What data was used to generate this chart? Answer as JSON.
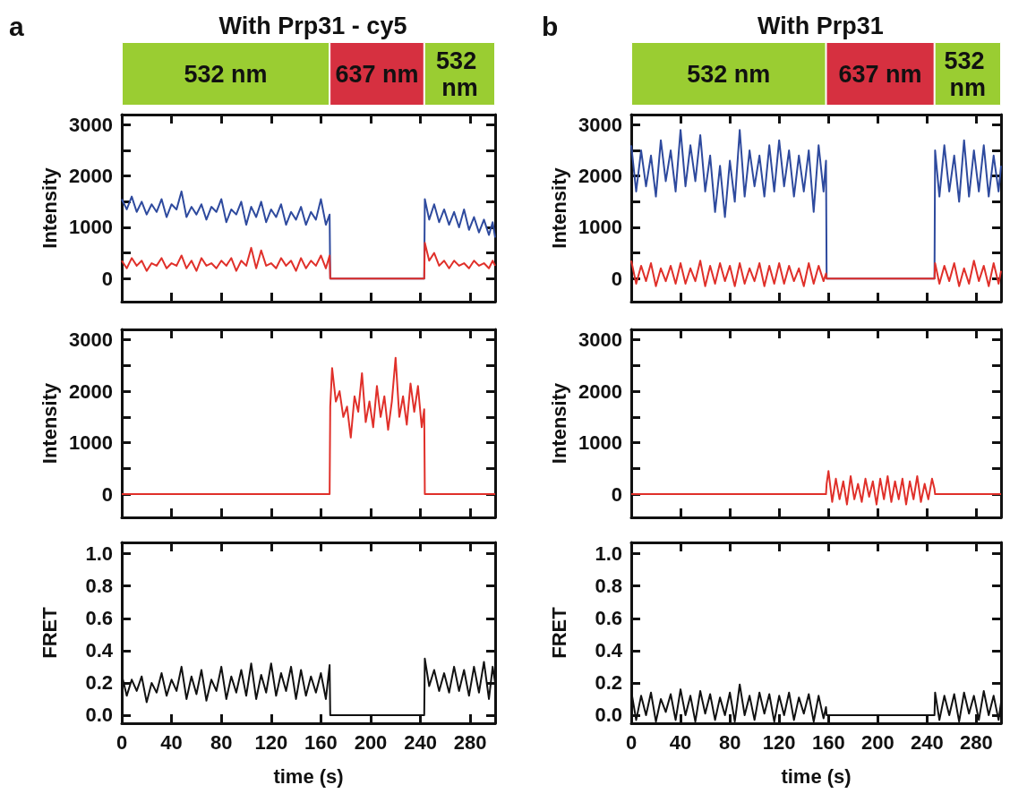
{
  "chart_data": [
    {
      "type": "bar",
      "orientation": "horizontal",
      "stacked": true,
      "title": "With Prp31 - cy5",
      "annotations": [
        "a"
      ],
      "tick_labels": false,
      "xlim": [
        0,
        300
      ],
      "categories": [
        null
      ],
      "series": [
        {
          "name": "532 nm",
          "color": "#9acd32",
          "values": [
            167
          ]
        },
        {
          "name": "637 nm",
          "color": "#d63040",
          "values": [
            76
          ]
        },
        {
          "name": "532 nm",
          "color": "#9acd32",
          "values": [
            57
          ]
        }
      ]
    },
    {
      "type": "line",
      "ylabel": "Intensity",
      "tick_labels": "y",
      "grid": false,
      "xlim": [
        0,
        300
      ],
      "xticks": [
        0,
        40,
        80,
        120,
        160,
        200,
        240,
        280
      ],
      "ylim": [
        -450,
        3200
      ],
      "yticks": [
        0,
        {
          "value": 500,
          "label": null
        },
        1000,
        {
          "value": 1500,
          "label": null
        },
        2000,
        {
          "value": 2500,
          "label": null
        },
        3000
      ],
      "series": [
        {
          "color": "#2e4a9e",
          "x": [
            0,
            4,
            8,
            12,
            16,
            20,
            24,
            28,
            32,
            36,
            40,
            44,
            48,
            52,
            56,
            60,
            64,
            68,
            72,
            76,
            80,
            84,
            88,
            92,
            96,
            100,
            104,
            108,
            112,
            116,
            120,
            124,
            128,
            132,
            136,
            140,
            144,
            148,
            152,
            156,
            160,
            164,
            167,
            167.5,
            243,
            243.5,
            247,
            251,
            255,
            259,
            263,
            267,
            271,
            275,
            279,
            283,
            287,
            291,
            295,
            298,
            300
          ],
          "values": [
            1550,
            1350,
            1600,
            1300,
            1500,
            1250,
            1450,
            1300,
            1550,
            1200,
            1450,
            1350,
            1700,
            1200,
            1400,
            1250,
            1450,
            1150,
            1400,
            1300,
            1550,
            1100,
            1350,
            1250,
            1500,
            1050,
            1400,
            1200,
            1500,
            1100,
            1350,
            1200,
            1450,
            1050,
            1300,
            1150,
            1400,
            1050,
            1300,
            1150,
            1550,
            1050,
            1250,
            0,
            0,
            1550,
            1150,
            1450,
            1100,
            1350,
            1050,
            1300,
            1000,
            1350,
            950,
            1200,
            900,
            1150,
            850,
            1100,
            800
          ]
        },
        {
          "color": "#e0302a",
          "x": [
            0,
            4,
            8,
            12,
            16,
            20,
            24,
            28,
            32,
            36,
            40,
            44,
            48,
            52,
            56,
            60,
            64,
            68,
            72,
            76,
            80,
            84,
            88,
            92,
            96,
            100,
            104,
            108,
            112,
            116,
            120,
            124,
            128,
            132,
            136,
            140,
            144,
            148,
            152,
            156,
            160,
            164,
            167,
            167.5,
            243,
            243.5,
            247,
            251,
            255,
            259,
            263,
            267,
            271,
            275,
            279,
            283,
            287,
            291,
            295,
            298,
            300
          ],
          "values": [
            350,
            200,
            400,
            250,
            350,
            150,
            300,
            250,
            400,
            200,
            300,
            250,
            450,
            200,
            350,
            150,
            400,
            250,
            300,
            200,
            350,
            250,
            400,
            150,
            350,
            250,
            600,
            200,
            550,
            250,
            300,
            200,
            400,
            250,
            350,
            150,
            400,
            200,
            350,
            250,
            450,
            200,
            450,
            0,
            0,
            700,
            350,
            500,
            250,
            350,
            200,
            350,
            250,
            300,
            200,
            350,
            250,
            300,
            200,
            350,
            250
          ]
        }
      ]
    },
    {
      "type": "line",
      "ylabel": "Intensity",
      "tick_labels": "y",
      "grid": false,
      "xlim": [
        0,
        300
      ],
      "xticks": [
        0,
        40,
        80,
        120,
        160,
        200,
        240,
        280
      ],
      "ylim": [
        -450,
        3200
      ],
      "yticks": [
        0,
        {
          "value": 500,
          "label": null
        },
        1000,
        {
          "value": 1500,
          "label": null
        },
        2000,
        {
          "value": 2500,
          "label": null
        },
        3000
      ],
      "series": [
        {
          "color": "#e0302a",
          "x": [
            0,
            167,
            167.5,
            169,
            172,
            175,
            178,
            181,
            184,
            187,
            190,
            193,
            196,
            199,
            202,
            205,
            208,
            211,
            214,
            217,
            220,
            223,
            226,
            229,
            232,
            235,
            238,
            241,
            243,
            243.5,
            300
          ],
          "values": [
            0,
            0,
            1700,
            2450,
            1800,
            2000,
            1500,
            1700,
            1100,
            1900,
            1600,
            2350,
            1400,
            1800,
            1300,
            2100,
            1500,
            1900,
            1250,
            1800,
            2650,
            1500,
            1900,
            1350,
            2150,
            1600,
            2100,
            1300,
            1650,
            0,
            0
          ]
        }
      ]
    },
    {
      "type": "line",
      "ylabel": "FRET",
      "xlabel": "time (s)",
      "grid": false,
      "xlim": [
        0,
        300
      ],
      "xticks": [
        0,
        40,
        80,
        120,
        160,
        200,
        240,
        280
      ],
      "ylim": [
        -0.05,
        1.07
      ],
      "yticks": [
        {
          "value": 0,
          "label": "0.0"
        },
        0.2,
        0.4,
        0.6,
        0.8,
        {
          "value": 1,
          "label": "1.0"
        }
      ],
      "series": [
        {
          "color": "#111111",
          "x": [
            0,
            4,
            8,
            12,
            16,
            20,
            24,
            28,
            32,
            36,
            40,
            44,
            48,
            52,
            56,
            60,
            64,
            68,
            72,
            76,
            80,
            84,
            88,
            92,
            96,
            100,
            104,
            108,
            112,
            116,
            120,
            124,
            128,
            132,
            136,
            140,
            144,
            148,
            152,
            156,
            160,
            164,
            167,
            167.5,
            243,
            243.5,
            247,
            251,
            255,
            259,
            263,
            267,
            271,
            275,
            279,
            283,
            287,
            291,
            295,
            298,
            300
          ],
          "values": [
            0.25,
            0.12,
            0.22,
            0.15,
            0.24,
            0.08,
            0.2,
            0.14,
            0.26,
            0.12,
            0.22,
            0.15,
            0.3,
            0.1,
            0.24,
            0.13,
            0.28,
            0.09,
            0.22,
            0.15,
            0.3,
            0.1,
            0.24,
            0.14,
            0.28,
            0.12,
            0.32,
            0.1,
            0.25,
            0.14,
            0.32,
            0.12,
            0.26,
            0.15,
            0.3,
            0.1,
            0.28,
            0.12,
            0.24,
            0.14,
            0.26,
            0.1,
            0.31,
            0,
            0,
            0.35,
            0.18,
            0.28,
            0.15,
            0.26,
            0.14,
            0.3,
            0.15,
            0.28,
            0.12,
            0.3,
            0.14,
            0.33,
            0.1,
            0.3,
            0.2
          ]
        }
      ]
    },
    {
      "type": "bar",
      "orientation": "horizontal",
      "stacked": true,
      "title": "With Prp31",
      "annotations": [
        "b"
      ],
      "tick_labels": false,
      "xlim": [
        0,
        300
      ],
      "categories": [
        null
      ],
      "series": [
        {
          "name": "532 nm",
          "color": "#9acd32",
          "values": [
            158
          ]
        },
        {
          "name": "637 nm",
          "color": "#d63040",
          "values": [
            88
          ]
        },
        {
          "name": "532 nm",
          "color": "#9acd32",
          "values": [
            54
          ]
        }
      ]
    },
    {
      "type": "line",
      "ylabel": "Intensity",
      "tick_labels": "y",
      "grid": false,
      "xlim": [
        0,
        300
      ],
      "xticks": [
        0,
        40,
        80,
        120,
        160,
        200,
        240,
        280
      ],
      "ylim": [
        -450,
        3200
      ],
      "yticks": [
        0,
        {
          "value": 500,
          "label": null
        },
        1000,
        {
          "value": 1500,
          "label": null
        },
        2000,
        {
          "value": 2500,
          "label": null
        },
        3000
      ],
      "series": [
        {
          "color": "#2e4a9e",
          "x": [
            0,
            4,
            8,
            12,
            16,
            20,
            24,
            28,
            32,
            36,
            40,
            44,
            48,
            52,
            56,
            60,
            64,
            68,
            72,
            76,
            80,
            84,
            88,
            92,
            96,
            100,
            104,
            108,
            112,
            116,
            120,
            124,
            128,
            132,
            136,
            140,
            144,
            148,
            152,
            156,
            158,
            158.5,
            246,
            246.5,
            250,
            254,
            258,
            262,
            266,
            270,
            274,
            278,
            282,
            286,
            290,
            294,
            298,
            300
          ],
          "values": [
            2600,
            1700,
            2500,
            1800,
            2400,
            1600,
            2700,
            1900,
            2500,
            1700,
            2900,
            1800,
            2600,
            1900,
            2800,
            1700,
            2400,
            1300,
            2200,
            1200,
            2300,
            1500,
            2900,
            1600,
            2500,
            1800,
            2400,
            1600,
            2600,
            1700,
            2700,
            1800,
            2500,
            1600,
            2400,
            1700,
            2500,
            1300,
            2600,
            1700,
            2300,
            0,
            0,
            2500,
            1600,
            2600,
            1700,
            2400,
            1500,
            2700,
            1600,
            2500,
            1700,
            2600,
            1600,
            2400,
            1700,
            2200
          ]
        },
        {
          "color": "#e0302a",
          "x": [
            0,
            4,
            8,
            12,
            16,
            20,
            24,
            28,
            32,
            36,
            40,
            44,
            48,
            52,
            56,
            60,
            64,
            68,
            72,
            76,
            80,
            84,
            88,
            92,
            96,
            100,
            104,
            108,
            112,
            116,
            120,
            124,
            128,
            132,
            136,
            140,
            144,
            148,
            152,
            156,
            158,
            158.5,
            246,
            246.5,
            250,
            254,
            258,
            262,
            266,
            270,
            274,
            278,
            282,
            286,
            290,
            294,
            298,
            300
          ],
          "values": [
            350,
            -100,
            250,
            -50,
            300,
            -150,
            200,
            -50,
            250,
            -100,
            300,
            -100,
            200,
            -50,
            350,
            -150,
            250,
            -100,
            300,
            -50,
            250,
            -150,
            300,
            -100,
            200,
            -50,
            300,
            -150,
            250,
            -100,
            300,
            -100,
            250,
            -50,
            200,
            -150,
            300,
            -100,
            250,
            -50,
            100,
            0,
            0,
            300,
            -100,
            250,
            -50,
            300,
            -150,
            200,
            -100,
            350,
            -50,
            250,
            -150,
            300,
            -100,
            150
          ]
        }
      ]
    },
    {
      "type": "line",
      "ylabel": "Intensity",
      "tick_labels": "y",
      "grid": false,
      "xlim": [
        0,
        300
      ],
      "xticks": [
        0,
        40,
        80,
        120,
        160,
        200,
        240,
        280
      ],
      "ylim": [
        -450,
        3200
      ],
      "yticks": [
        0,
        {
          "value": 500,
          "label": null
        },
        1000,
        {
          "value": 1500,
          "label": null
        },
        2000,
        {
          "value": 2500,
          "label": null
        },
        3000
      ],
      "series": [
        {
          "color": "#e0302a",
          "x": [
            0,
            158,
            158.5,
            160,
            163,
            166,
            169,
            172,
            175,
            178,
            181,
            184,
            187,
            190,
            193,
            196,
            199,
            202,
            205,
            208,
            211,
            214,
            217,
            220,
            223,
            226,
            229,
            232,
            235,
            238,
            241,
            244,
            246,
            246.5,
            300
          ],
          "values": [
            0,
            0,
            200,
            450,
            -150,
            300,
            -100,
            250,
            -200,
            350,
            -100,
            200,
            -150,
            300,
            -50,
            250,
            -200,
            300,
            -100,
            350,
            -150,
            250,
            -100,
            300,
            -200,
            250,
            -100,
            350,
            -150,
            200,
            -100,
            300,
            100,
            0,
            0
          ]
        }
      ]
    },
    {
      "type": "line",
      "ylabel": "FRET",
      "xlabel": "time (s)",
      "grid": false,
      "xlim": [
        0,
        300
      ],
      "xticks": [
        0,
        40,
        80,
        120,
        160,
        200,
        240,
        280
      ],
      "ylim": [
        -0.05,
        1.07
      ],
      "yticks": [
        {
          "value": 0,
          "label": "0.0"
        },
        0.2,
        0.4,
        0.6,
        0.8,
        {
          "value": 1,
          "label": "1.0"
        }
      ],
      "series": [
        {
          "color": "#111111",
          "x": [
            0,
            4,
            8,
            12,
            16,
            20,
            24,
            28,
            32,
            36,
            40,
            44,
            48,
            52,
            56,
            60,
            64,
            68,
            72,
            76,
            80,
            84,
            88,
            92,
            96,
            100,
            104,
            108,
            112,
            116,
            120,
            124,
            128,
            132,
            136,
            140,
            144,
            148,
            152,
            156,
            158,
            158.5,
            246,
            246.5,
            250,
            254,
            258,
            262,
            266,
            270,
            274,
            278,
            282,
            286,
            290,
            294,
            298,
            300
          ],
          "values": [
            0.15,
            -0.03,
            0.12,
            0,
            0.14,
            -0.04,
            0.1,
            0.02,
            0.13,
            -0.03,
            0.16,
            0,
            0.12,
            -0.04,
            0.15,
            0.01,
            0.13,
            -0.03,
            0.11,
            0,
            0.14,
            -0.04,
            0.19,
            0,
            0.12,
            -0.03,
            0.14,
            0.01,
            0.13,
            -0.04,
            0.12,
            0,
            0.14,
            -0.03,
            0.11,
            0.01,
            0.13,
            -0.04,
            0.12,
            -0.02,
            0.05,
            0,
            0,
            0.14,
            -0.03,
            0.12,
            0,
            0.13,
            -0.04,
            0.14,
            0.01,
            0.12,
            -0.03,
            0.15,
            0,
            0.12,
            -0.03,
            0.08
          ]
        }
      ]
    }
  ]
}
